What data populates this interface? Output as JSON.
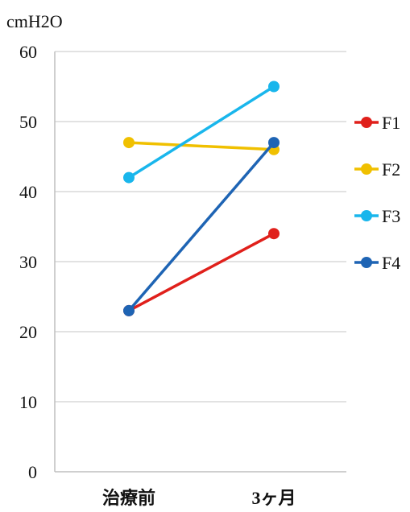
{
  "chart_data": {
    "type": "line",
    "ylabel": "cmH2O",
    "ylim": [
      0,
      60
    ],
    "yticks": [
      0,
      10,
      20,
      30,
      40,
      50,
      60
    ],
    "categories": [
      "治療前",
      "3ヶ月"
    ],
    "grid": true,
    "legend_position": "right",
    "series": [
      {
        "name": "F1",
        "values": [
          23,
          34
        ],
        "color": "#e0201b"
      },
      {
        "name": "F2",
        "values": [
          47,
          46
        ],
        "color": "#f0c000"
      },
      {
        "name": "F3",
        "values": [
          42,
          55
        ],
        "color": "#19b6ec"
      },
      {
        "name": "F4",
        "values": [
          23,
          47
        ],
        "color": "#1e64b4"
      }
    ]
  }
}
